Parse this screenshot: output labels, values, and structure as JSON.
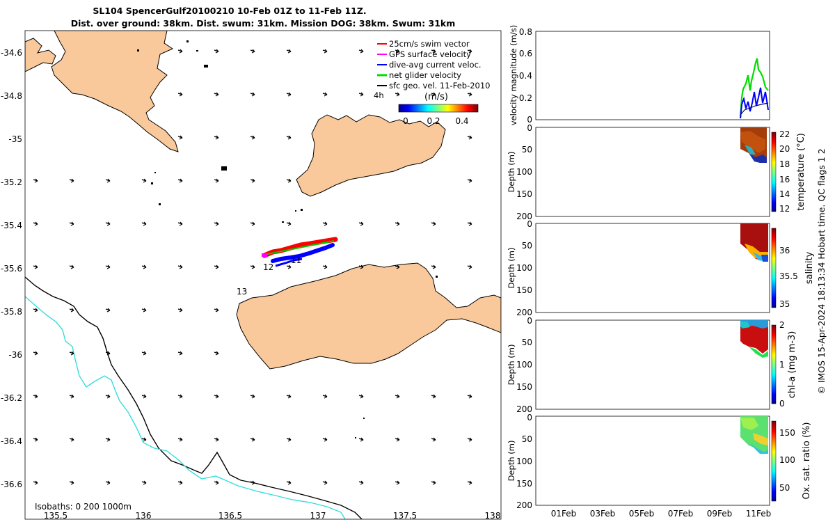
{
  "title": {
    "line1": "SL104 SpencerGulf20100210 10-Feb 01Z to 11-Feb 11Z.",
    "line2": "Dist. over ground: 38km. Dist. swum: 31km. Mission DOG: 38km. Swum: 31km"
  },
  "map": {
    "x_ticks": [
      "135.5",
      "136",
      "136.5",
      "137",
      "137.5",
      "138"
    ],
    "y_ticks": [
      "-34.6",
      "-34.8",
      "-35",
      "-35.2",
      "-35.4",
      "-35.6",
      "-35.8",
      "-36",
      "-36.2",
      "-36.4",
      "-36.6"
    ],
    "legend": [
      {
        "label": "25cm/s swim vector",
        "color": "#ff0000"
      },
      {
        "label": "GPS surface velocity",
        "color": "#ff00ff"
      },
      {
        "label": "dive-avg current veloc.",
        "color": "#0000ff"
      },
      {
        "label": "net glider velocity",
        "color": "#00dd00"
      },
      {
        "label": "sfc geo. vel. 11-Feb-2010",
        "color": "#000000"
      }
    ],
    "time_marker": "4h",
    "colorbar_title": "(m/s)",
    "colorbar_ticks": [
      "0",
      "0.2",
      "0.4"
    ],
    "day_labels": [
      "12",
      "11",
      "13"
    ],
    "isobaths_label": "Isobaths: 0   200  1000m",
    "land_color": "#f9c99b",
    "isobath_200_color": "#000000",
    "isobath_1000_color": "#33dddd"
  },
  "panels": {
    "velocity": {
      "ylabel": "velocity magnitude (m/s)",
      "y_ticks": [
        "0.8",
        "0.6",
        "0.4",
        "0.2",
        "0"
      ]
    },
    "temperature": {
      "ylabel": "Depth (m)",
      "y_ticks": [
        "0",
        "50",
        "100",
        "150",
        "200"
      ],
      "cb_label": "temperature (°C)",
      "cb_ticks": [
        "22",
        "20",
        "18",
        "16",
        "14",
        "12"
      ]
    },
    "salinity": {
      "ylabel": "Depth (m)",
      "y_ticks": [
        "0",
        "50",
        "100",
        "150",
        "200"
      ],
      "cb_label": "salinity",
      "cb_ticks": [
        "36",
        "35.5",
        "35"
      ]
    },
    "chla": {
      "ylabel": "Depth (m)",
      "y_ticks": [
        "0",
        "50",
        "100",
        "150",
        "200"
      ],
      "cb_label": "chl-a (mg m-3)",
      "cb_ticks": [
        "2",
        "1",
        "0"
      ]
    },
    "oxygen": {
      "ylabel": "Depth (m)",
      "y_ticks": [
        "0",
        "50",
        "100",
        "150",
        "200"
      ],
      "cb_label": "Ox. sat. ratio (%)",
      "cb_ticks": [
        "150",
        "100",
        "50"
      ],
      "x_ticks": [
        "01Feb",
        "03Feb",
        "05Feb",
        "07Feb",
        "09Feb",
        "11Feb"
      ]
    }
  },
  "footer": "© IMOS 15-Apr-2024 18:13:34 Hobart time. QC flags 1  2",
  "chart_data": {
    "type": "line",
    "title": "",
    "xlabel": "",
    "ylabel": "velocity magnitude (m/s)",
    "x": [
      "10Feb",
      "10.5Feb",
      "11Feb",
      "11.4Feb"
    ],
    "ylim": [
      0,
      0.8
    ],
    "series": [
      {
        "name": "net glider velocity",
        "values": [
          0.2,
          0.35,
          0.5,
          0.3
        ]
      },
      {
        "name": "dive-avg current veloc.",
        "values": [
          0.1,
          0.18,
          0.22,
          0.12
        ]
      }
    ]
  }
}
